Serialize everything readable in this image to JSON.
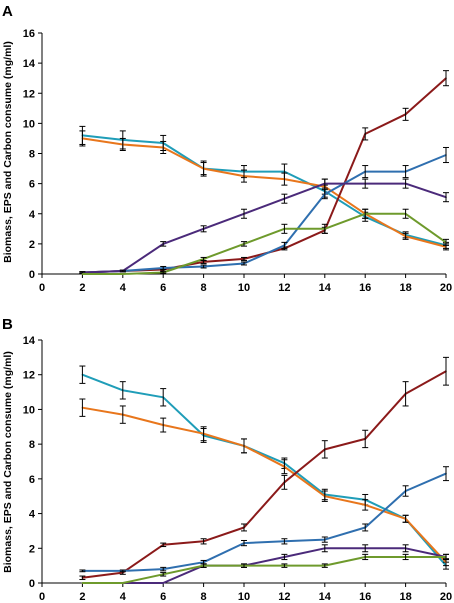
{
  "ylabel": "Biomass, EPS and Carbon consume (mg/ml)",
  "chart_data": [
    {
      "type": "line",
      "panel_label": "A",
      "x": [
        2,
        4,
        6,
        8,
        10,
        12,
        14,
        16,
        18,
        20
      ],
      "xlim": [
        0,
        20
      ],
      "ylim": [
        0,
        16
      ],
      "xticks": [
        0,
        2,
        4,
        6,
        8,
        10,
        12,
        14,
        16,
        18,
        20
      ],
      "yticks": [
        0,
        2,
        4,
        6,
        8,
        10,
        12,
        14,
        16
      ],
      "xlabel": "",
      "ylabel": "Biomass, EPS and Carbon consume (mg/ml)",
      "grid": false,
      "legend": "none",
      "series": [
        {
          "color": "#1f9db8",
          "values": [
            9.2,
            8.9,
            8.7,
            7.0,
            6.8,
            6.8,
            5.5,
            3.8,
            2.6,
            1.9
          ],
          "errors": [
            0.6,
            0.6,
            0.5,
            0.5,
            0.4,
            0.5,
            0.4,
            0.3,
            0.2,
            0.2
          ]
        },
        {
          "color": "#e8761c",
          "values": [
            9.0,
            8.6,
            8.4,
            7.0,
            6.5,
            6.3,
            5.8,
            4.0,
            2.5,
            1.8
          ],
          "errors": [
            0.5,
            0.4,
            0.4,
            0.4,
            0.4,
            0.4,
            0.5,
            0.3,
            0.2,
            0.2
          ]
        },
        {
          "color": "#8b1a1a",
          "values": [
            0.1,
            0.2,
            0.3,
            0.8,
            1.0,
            1.7,
            2.9,
            9.3,
            10.6,
            13.0
          ],
          "errors": [
            0.05,
            0.05,
            0.1,
            0.1,
            0.1,
            0.1,
            0.2,
            0.4,
            0.4,
            0.5
          ]
        },
        {
          "color": "#2f6faf",
          "values": [
            0.1,
            0.2,
            0.4,
            0.5,
            0.7,
            1.9,
            5.3,
            6.8,
            6.8,
            7.9
          ],
          "errors": [
            0.05,
            0.05,
            0.1,
            0.1,
            0.1,
            0.2,
            0.3,
            0.4,
            0.4,
            0.5
          ]
        },
        {
          "color": "#4b2a7a",
          "values": [
            0.1,
            0.2,
            2.0,
            3.0,
            4.0,
            5.0,
            6.0,
            6.0,
            6.0,
            5.1
          ],
          "errors": [
            0.05,
            0.05,
            0.15,
            0.2,
            0.3,
            0.3,
            0.3,
            0.3,
            0.3,
            0.3
          ]
        },
        {
          "color": "#6e9a2c",
          "values": [
            0.0,
            0.0,
            0.1,
            1.0,
            2.0,
            3.0,
            3.0,
            4.0,
            4.0,
            2.1
          ],
          "errors": [
            0.0,
            0.0,
            0.05,
            0.1,
            0.15,
            0.3,
            0.3,
            0.3,
            0.3,
            0.2
          ]
        }
      ]
    },
    {
      "type": "line",
      "panel_label": "B",
      "x": [
        2,
        4,
        6,
        8,
        10,
        12,
        14,
        16,
        18,
        20
      ],
      "xlim": [
        0,
        20
      ],
      "ylim": [
        0,
        14
      ],
      "xticks": [
        0,
        2,
        4,
        6,
        8,
        10,
        12,
        14,
        16,
        18,
        20
      ],
      "yticks": [
        0,
        2,
        4,
        6,
        8,
        10,
        12,
        14
      ],
      "xlabel": "",
      "ylabel": "Biomass, EPS and Carbon consume (mg/ml)",
      "grid": false,
      "legend": "none",
      "series": [
        {
          "color": "#1f9db8",
          "values": [
            12.0,
            11.1,
            10.7,
            8.5,
            7.9,
            6.9,
            5.1,
            4.8,
            3.7,
            1.0
          ],
          "errors": [
            0.5,
            0.5,
            0.5,
            0.4,
            0.4,
            0.3,
            0.3,
            0.3,
            0.2,
            0.2
          ]
        },
        {
          "color": "#e8761c",
          "values": [
            10.1,
            9.7,
            9.1,
            8.6,
            7.9,
            6.7,
            5.0,
            4.5,
            3.7,
            1.2
          ],
          "errors": [
            0.5,
            0.5,
            0.4,
            0.4,
            0.4,
            0.4,
            0.3,
            0.3,
            0.2,
            0.2
          ]
        },
        {
          "color": "#8b1a1a",
          "values": [
            0.3,
            0.6,
            2.2,
            2.4,
            3.2,
            5.8,
            7.7,
            8.3,
            10.9,
            12.2
          ],
          "errors": [
            0.1,
            0.1,
            0.1,
            0.15,
            0.2,
            0.4,
            0.5,
            0.5,
            0.7,
            0.8
          ]
        },
        {
          "color": "#2f6faf",
          "values": [
            0.7,
            0.7,
            0.8,
            1.2,
            2.3,
            2.4,
            2.5,
            3.2,
            5.3,
            6.3
          ],
          "errors": [
            0.05,
            0.05,
            0.1,
            0.1,
            0.15,
            0.15,
            0.15,
            0.2,
            0.3,
            0.4
          ]
        },
        {
          "color": "#4b2a7a",
          "values": [
            0.0,
            0.0,
            0.0,
            1.0,
            1.0,
            1.5,
            2.0,
            2.0,
            2.0,
            1.5
          ],
          "errors": [
            0.0,
            0.0,
            0.0,
            0.1,
            0.1,
            0.15,
            0.2,
            0.2,
            0.2,
            0.15
          ]
        },
        {
          "color": "#6e9a2c",
          "values": [
            0.0,
            0.0,
            0.5,
            1.0,
            1.0,
            1.0,
            1.0,
            1.5,
            1.5,
            1.5
          ],
          "errors": [
            0.0,
            0.0,
            0.1,
            0.1,
            0.1,
            0.1,
            0.1,
            0.15,
            0.15,
            0.15
          ]
        }
      ]
    }
  ]
}
